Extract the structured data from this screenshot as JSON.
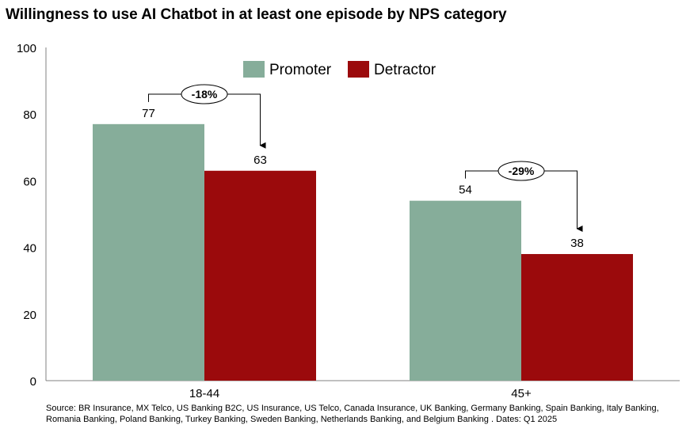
{
  "title": "Willingness to use AI Chatbot in at least one episode by NPS category",
  "source": "Source: BR Insurance, MX Telco, US Banking B2C, US Insurance, US Telco, Canada Insurance, UK Banking, Germany Banking, Spain Banking, Italy Banking, Romania Banking, Poland Banking, Turkey Banking, Sweden Banking, Netherlands Banking, and Belgium Banking . Dates: Q1 2025",
  "chart_data": {
    "type": "bar",
    "title": "Willingness to use AI Chatbot in at least one episode by NPS category",
    "xlabel": "",
    "ylabel": "",
    "categories": [
      "18-44",
      "45+"
    ],
    "series": [
      {
        "name": "Promoter",
        "values": [
          77,
          54
        ],
        "color": "#86ad9a"
      },
      {
        "name": "Detractor",
        "values": [
          63,
          38
        ],
        "color": "#9b0a0c"
      }
    ],
    "ylim": [
      0,
      100
    ],
    "yticks": [
      0,
      20,
      40,
      60,
      80,
      100
    ],
    "grid": false,
    "legend_position": "top-center",
    "annotations": [
      "-18%",
      "-29%"
    ]
  }
}
